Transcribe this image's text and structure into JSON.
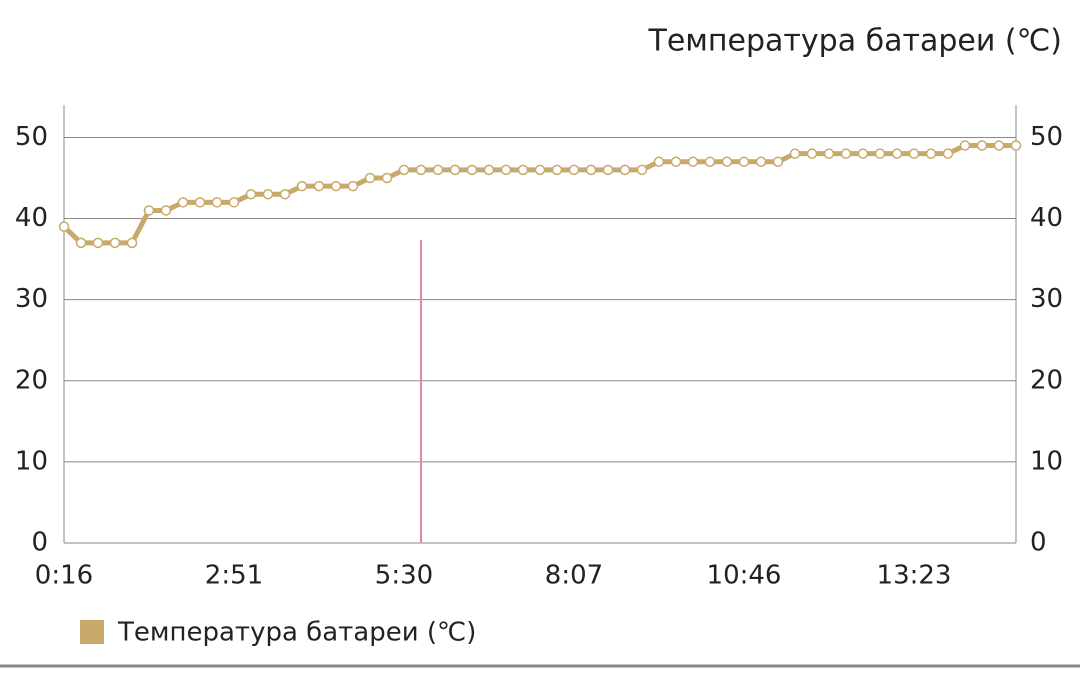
{
  "chart_data": {
    "type": "line",
    "title": "Температура батареи (℃)",
    "categories": [
      "0:16",
      null,
      null,
      null,
      null,
      null,
      null,
      null,
      null,
      null,
      "2:51",
      null,
      null,
      null,
      null,
      null,
      null,
      null,
      null,
      null,
      "5:30",
      null,
      null,
      null,
      null,
      null,
      null,
      null,
      null,
      null,
      "8:07",
      null,
      null,
      null,
      null,
      null,
      null,
      null,
      null,
      null,
      "10:46",
      null,
      null,
      null,
      null,
      null,
      null,
      null,
      null,
      null,
      "13:23",
      null,
      null,
      null,
      null,
      null,
      null
    ],
    "series": [
      {
        "name": "Температура батареи (℃)",
        "color": "#c9a96b",
        "values": [
          39,
          37,
          37,
          37,
          37,
          41,
          41,
          42,
          42,
          42,
          42,
          43,
          43,
          43,
          44,
          44,
          44,
          44,
          45,
          45,
          46,
          46,
          46,
          46,
          46,
          46,
          46,
          46,
          46,
          46,
          46,
          46,
          46,
          46,
          46,
          47,
          47,
          47,
          47,
          47,
          47,
          47,
          47,
          48,
          48,
          48,
          48,
          48,
          48,
          48,
          48,
          48,
          48,
          49,
          49,
          49,
          49
        ]
      }
    ],
    "ylim": [
      0,
      54
    ],
    "yticks": [
      0,
      10,
      20,
      30,
      40,
      50
    ],
    "y2lim": [
      0,
      54
    ],
    "y2ticks": [
      0,
      10,
      20,
      30,
      40,
      50
    ],
    "grid": true,
    "legend": "bottom-left"
  }
}
